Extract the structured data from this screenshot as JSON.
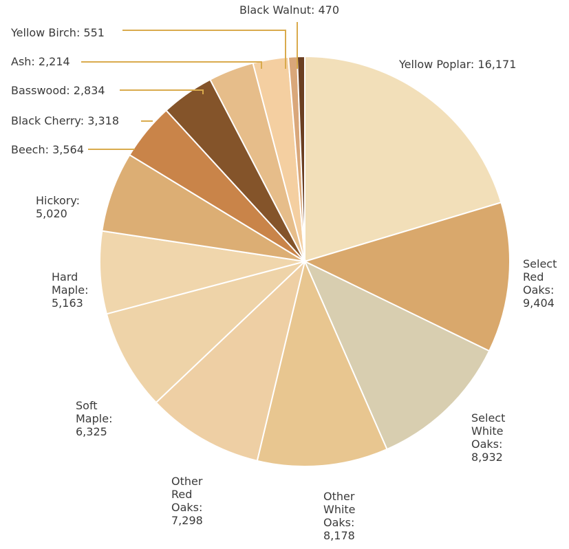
{
  "chart_data": {
    "type": "pie",
    "categories": [
      "Yellow Poplar",
      "Select Red Oaks",
      "Select White Oaks",
      "Other White Oaks",
      "Other Red Oaks",
      "Soft Maple",
      "Hard Maple",
      "Hickory",
      "Beech",
      "Black Cherry",
      "Basswood",
      "Ash",
      "Yellow Birch",
      "Black Walnut"
    ],
    "values": [
      16171,
      9404,
      8932,
      8178,
      7298,
      6325,
      5163,
      5020,
      3564,
      3318,
      2834,
      2214,
      551,
      470
    ],
    "value_labels": [
      "16,171",
      "9,404",
      "8,932",
      "8,178",
      "7,298",
      "6,325",
      "5,163",
      "5,020",
      "3,564",
      "3,318",
      "2,834",
      "2,214",
      "551",
      "470"
    ],
    "colors": [
      "#f2dfb9",
      "#d9a86c",
      "#d8ceb0",
      "#e8c690",
      "#eecfa4",
      "#eed3a8",
      "#f0d6ac",
      "#dcae74",
      "#c98449",
      "#84542a",
      "#e6bd8a",
      "#f4cfa1",
      "#d9a77a",
      "#6b3f22"
    ]
  }
}
